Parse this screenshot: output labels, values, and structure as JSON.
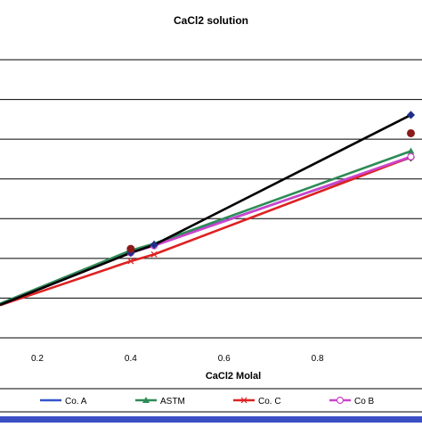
{
  "chart_data": {
    "type": "line",
    "title": "CaCl2 solution",
    "xlabel": "CaCl2 Molal",
    "ylabel": "",
    "xlim": [
      0.12,
      1.02
    ],
    "ylim": [
      0.3,
      1.0
    ],
    "x_ticks": [
      0.2,
      0.4,
      0.6,
      0.8
    ],
    "x_tick_labels": [
      "0.2",
      "0.4",
      "0.6",
      "0.8"
    ],
    "y_ticks": [
      0.4,
      0.5,
      0.6,
      0.7,
      0.8,
      0.9
    ],
    "grid": true,
    "legend_position": "bottom",
    "series": [
      {
        "name": "Co. A",
        "color": "#3355cc",
        "marker": "diamond",
        "x": [
          0.12,
          0.4,
          0.45,
          1.0
        ],
        "y": [
          0.384,
          0.517,
          0.534,
          0.754
        ]
      },
      {
        "name": "ASTM",
        "color": "#2e8b57",
        "marker": "triangle",
        "x": [
          0.12,
          0.4,
          0.45,
          1.0
        ],
        "y": [
          0.386,
          0.52,
          0.537,
          0.77
        ]
      },
      {
        "name": "Co. C",
        "color": "#dd2222",
        "marker": "cross",
        "x": [
          0.12,
          0.4,
          0.45,
          1.0
        ],
        "y": [
          0.382,
          0.493,
          0.51,
          0.755
        ]
      },
      {
        "name": "Co B",
        "color": "#cc44cc",
        "marker": "circle-open",
        "x": [
          0.12,
          0.4,
          0.45,
          1.0
        ],
        "y": [
          0.383,
          0.514,
          0.532,
          0.756
        ]
      },
      {
        "name": "",
        "color": "#000000",
        "marker": "diamond-filled",
        "x": [
          0.12,
          0.4,
          0.45,
          1.0
        ],
        "y": [
          0.383,
          0.514,
          0.534,
          0.861
        ]
      },
      {
        "name": "",
        "color": "#8b1a1a",
        "marker": "dot",
        "line": false,
        "x": [
          0.4,
          1.0
        ],
        "y": [
          0.524,
          0.815
        ]
      }
    ]
  }
}
